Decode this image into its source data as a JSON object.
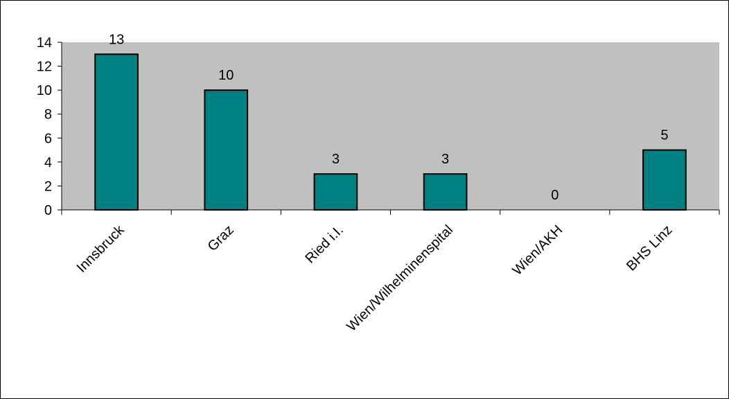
{
  "chart_data": {
    "type": "bar",
    "categories": [
      "Innsbruck",
      "Graz",
      "Ried i.I.",
      "Wien/Wilhelminenspital",
      "Wien/AKH",
      "BHS Linz"
    ],
    "values": [
      13,
      10,
      3,
      3,
      0,
      5
    ],
    "data_labels": [
      "13",
      "10",
      "3",
      "3",
      "0",
      "5"
    ],
    "title": "",
    "xlabel": "",
    "ylabel": "",
    "ylim": [
      0,
      14
    ],
    "yticks": [
      0,
      2,
      4,
      6,
      8,
      10,
      12,
      14
    ],
    "ytick_labels": [
      "0",
      "2",
      "4",
      "6",
      "8",
      "10",
      "12",
      "14"
    ],
    "grid": false,
    "legend": "none",
    "colors": {
      "bar": "#008080",
      "plot_background": "#C0C0C0",
      "bar_edge": "#000000"
    }
  }
}
